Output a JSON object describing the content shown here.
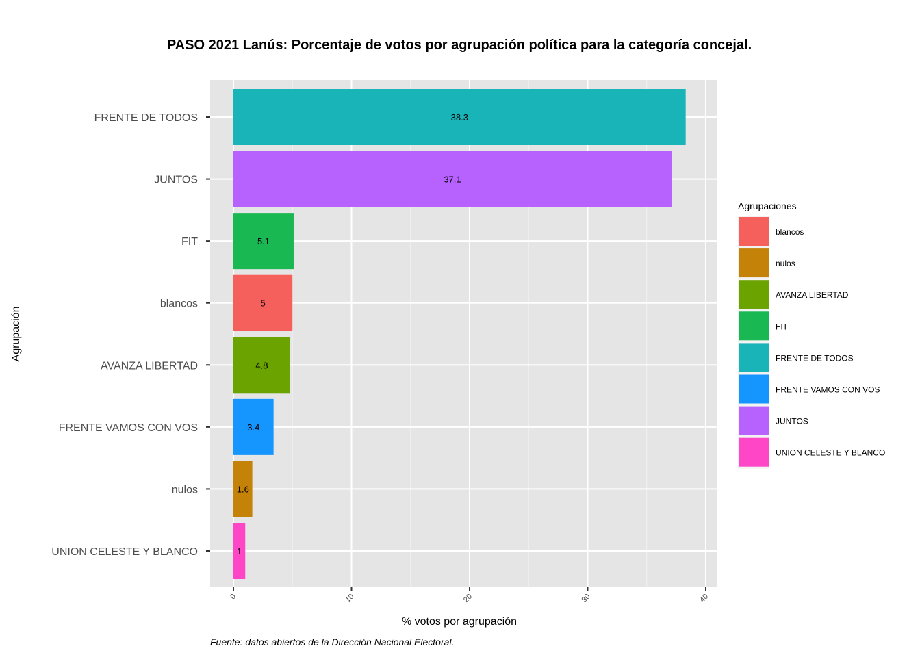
{
  "chart_data": {
    "type": "bar",
    "orientation": "horizontal",
    "title": "PASO 2021 Lanús: Porcentaje de votos por agrupación política para la categoría concejal.",
    "xlabel": "% votos por agrupación",
    "ylabel": "Agrupación",
    "caption": "Fuente: datos abiertos de la Dirección Nacional Electoral.",
    "xlim": [
      -2,
      41
    ],
    "xticks": [
      0,
      10,
      20,
      30,
      40
    ],
    "grid": true,
    "categories": [
      "FRENTE DE TODOS",
      "JUNTOS",
      "FIT",
      "blancos",
      "AVANZA LIBERTAD",
      "FRENTE VAMOS CON VOS",
      "nulos",
      "UNION CELESTE Y BLANCO"
    ],
    "values": [
      38.3,
      37.1,
      5.1,
      5,
      4.8,
      3.4,
      1.6,
      1
    ],
    "data_labels": [
      "38.3",
      "37.1",
      "5.1",
      "5",
      "4.8",
      "3.4",
      "1.6",
      "1"
    ],
    "colors": [
      "#19B4B8",
      "#B762FF",
      "#19B852",
      "#F6605C",
      "#6BA300",
      "#1596FF",
      "#C48208",
      "#FF46C7"
    ],
    "legend": {
      "title": "Agrupaciones",
      "placement": "right",
      "entries": [
        {
          "label": "blancos",
          "color": "#F6605C"
        },
        {
          "label": "nulos",
          "color": "#C48208"
        },
        {
          "label": "AVANZA LIBERTAD",
          "color": "#6BA300"
        },
        {
          "label": "FIT",
          "color": "#19B852"
        },
        {
          "label": "FRENTE DE TODOS",
          "color": "#19B4B8"
        },
        {
          "label": "FRENTE VAMOS CON VOS",
          "color": "#1596FF"
        },
        {
          "label": "JUNTOS",
          "color": "#B762FF"
        },
        {
          "label": "UNION CELESTE Y BLANCO",
          "color": "#FF46C7"
        }
      ]
    }
  }
}
